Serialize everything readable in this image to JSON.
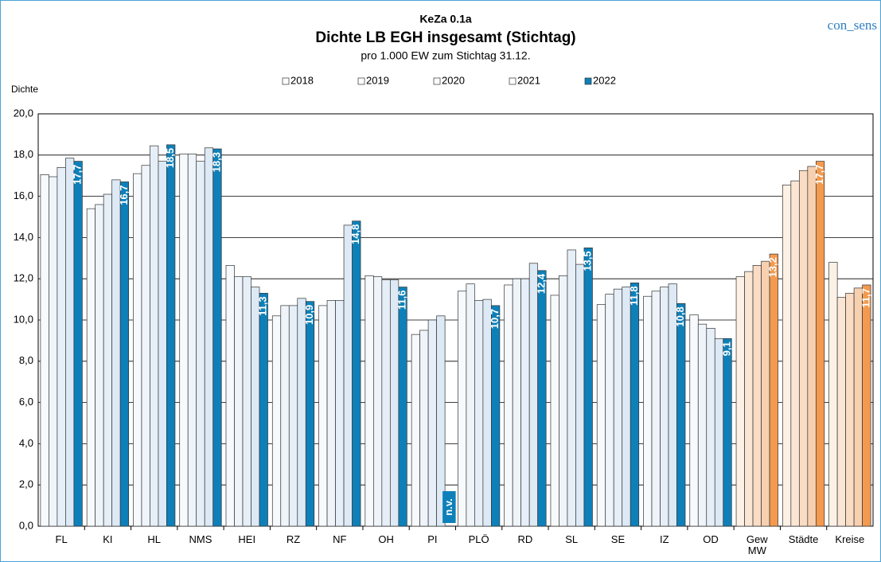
{
  "chart_data": {
    "type": "bar",
    "pretitle": "KeZa 0.1a",
    "title": "Dichte LB EGH insgesamt (Stichtag)",
    "subtitle": "pro 1.000 EW zum Stichtag 31.12.",
    "ylabel": "Dichte",
    "brand": "con_sens",
    "categories": [
      "FL",
      "KI",
      "HL",
      "NMS",
      "HEI",
      "RZ",
      "NF",
      "OH",
      "PI",
      "PLÖ",
      "RD",
      "SL",
      "SE",
      "IZ",
      "OD",
      "Gew MW",
      "Städte",
      "Kreise"
    ],
    "alt_categories": [
      "Gew MW",
      "Städte",
      "Kreise"
    ],
    "series": [
      {
        "name": "2018",
        "color": "#f7fafd",
        "alt_color": "#fdf1e6",
        "values": [
          17.05,
          15.4,
          17.1,
          18.05,
          12.65,
          10.2,
          10.7,
          12.15,
          9.3,
          11.4,
          11.7,
          11.2,
          10.75,
          11.15,
          10.25,
          12.1,
          16.55,
          12.8
        ]
      },
      {
        "name": "2019",
        "color": "#eef4fa",
        "alt_color": "#fbe6d4",
        "values": [
          16.95,
          15.6,
          17.5,
          18.05,
          12.1,
          10.7,
          10.95,
          12.1,
          9.5,
          11.75,
          12.0,
          12.15,
          11.25,
          11.4,
          9.8,
          12.35,
          16.75,
          11.1
        ]
      },
      {
        "name": "2020",
        "color": "#e6eff8",
        "alt_color": "#f9dcc3",
        "values": [
          17.4,
          16.1,
          18.45,
          17.7,
          12.1,
          10.7,
          10.95,
          11.95,
          10.0,
          10.95,
          12.0,
          13.4,
          11.5,
          11.6,
          9.6,
          12.65,
          17.25,
          11.3
        ]
      },
      {
        "name": "2021",
        "color": "#dde9f5",
        "alt_color": "#f7d0b0",
        "values": [
          17.85,
          16.8,
          17.7,
          18.35,
          11.6,
          11.05,
          14.6,
          11.95,
          10.2,
          11.0,
          12.75,
          12.7,
          11.6,
          11.75,
          9.1,
          12.85,
          17.45,
          11.55
        ]
      },
      {
        "name": "2022",
        "color": "#0e80b9",
        "alt_color": "#f39a4e",
        "values": [
          17.7,
          16.7,
          18.5,
          18.3,
          11.3,
          10.9,
          14.8,
          11.6,
          null,
          10.7,
          12.4,
          13.5,
          11.8,
          10.8,
          9.1,
          13.2,
          17.7,
          11.7
        ],
        "value_labels": [
          "17,7",
          "16,7",
          "18,5",
          "18,3",
          "11,3",
          "10,9",
          "14,8",
          "11,6",
          "n.v.",
          "10,7",
          "12,4",
          "13,5",
          "11,8",
          "10,8",
          "9,1",
          "13,2",
          "17,7",
          "11,7"
        ]
      }
    ],
    "ylim": [
      0,
      20
    ],
    "yticks": [
      {
        "value": 0,
        "label": "0,0"
      },
      {
        "value": 2,
        "label": "2,0"
      },
      {
        "value": 4,
        "label": "4,0"
      },
      {
        "value": 6,
        "label": "6,0"
      },
      {
        "value": 8,
        "label": "8,0"
      },
      {
        "value": 10,
        "label": "10,0"
      },
      {
        "value": 12,
        "label": "12,0"
      },
      {
        "value": 14,
        "label": "14,0"
      },
      {
        "value": 16,
        "label": "16,0"
      },
      {
        "value": 18,
        "label": "18,0"
      },
      {
        "value": 20,
        "label": "20,0"
      }
    ],
    "grid": true,
    "legend": "top"
  }
}
